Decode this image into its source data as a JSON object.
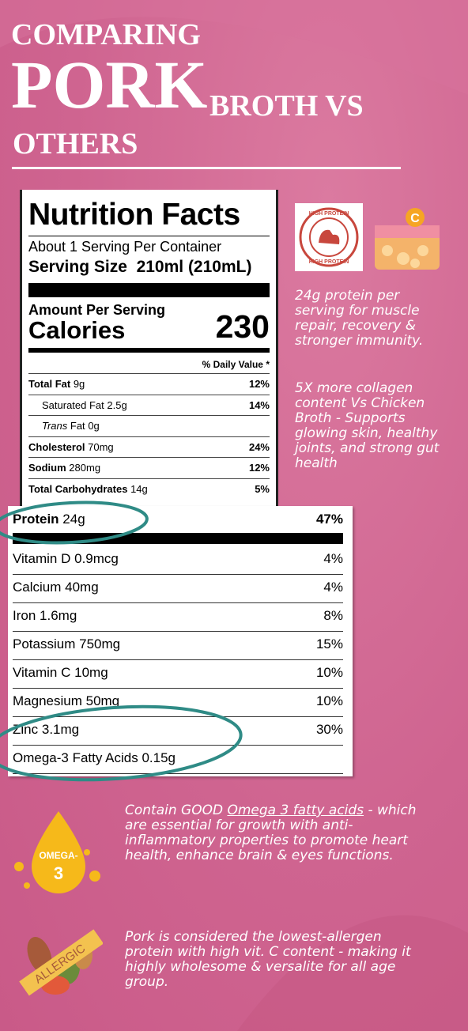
{
  "header": {
    "line1": "COMPARING",
    "big": "PORK",
    "line2": "BROTH VS",
    "line3": "OTHERS"
  },
  "nutrition": {
    "title": "Nutrition Facts",
    "servings": "About 1 Serving Per Container",
    "serving_size_label": "Serving Size",
    "serving_size": "210ml (210mL)",
    "amount_per_serving": "Amount Per Serving",
    "calories_label": "Calories",
    "calories": "230",
    "daily_value": "% Daily Value *",
    "rows": [
      {
        "name": "Total Fat",
        "amount": "9g",
        "dv": "12%"
      },
      {
        "name": "Saturated Fat",
        "amount": "2.5g",
        "dv": "14%"
      },
      {
        "name_italic": "Trans",
        "name": "Fat",
        "amount": "0g"
      },
      {
        "name": "Cholesterol",
        "amount": "70mg",
        "dv": "24%"
      },
      {
        "name": "Sodium",
        "amount": "280mg",
        "dv": "12%"
      },
      {
        "name": "Total Carbohydrates",
        "amount": "14g",
        "dv": "5%"
      }
    ],
    "zoom_rows": [
      {
        "name": "Protein",
        "amount": "24g",
        "dv": "47%"
      },
      {
        "name": "Vitamin D",
        "amount": "0.9mcg",
        "dv": "4%"
      },
      {
        "name": "Calcium",
        "amount": "40mg",
        "dv": "4%"
      },
      {
        "name": "Iron",
        "amount": "1.6mg",
        "dv": "8%"
      },
      {
        "name": "Potassium",
        "amount": "750mg",
        "dv": "15%"
      },
      {
        "name": "Vitamin C",
        "amount": "10mg",
        "dv": "10%"
      },
      {
        "name": "Magnesium",
        "amount": "50mg",
        "dv": "10%"
      },
      {
        "name": "Zinc",
        "amount": "3.1mg",
        "dv": "30%"
      },
      {
        "name": "Omega-3 Fatty Acids",
        "amount": "0.15g"
      }
    ]
  },
  "icons": {
    "badge_top": "HIGH PROTEIN",
    "badge_bottom": "HIGH PROTEIN",
    "omega_1": "OMEGA-",
    "omega_2": "3",
    "allergic": "ALLERGIC"
  },
  "notes": {
    "protein": "24g protein per serving for muscle repair, recovery & stronger immunity.",
    "collagen": "5X more collagen content Vs Chicken Broth - Supports glowing skin, healthy joints, and strong gut health",
    "omega_pre": "Contain GOOD ",
    "omega_link": "Omega 3 fatty acids",
    "omega_post": " - which are essential for growth with anti-inflammatory properties to promote heart health, enhance brain & eyes functions.",
    "allergen": "Pork is considered the lowest-allergen protein with high vit. C content - making it highly wholesome & versalite for all age group."
  }
}
